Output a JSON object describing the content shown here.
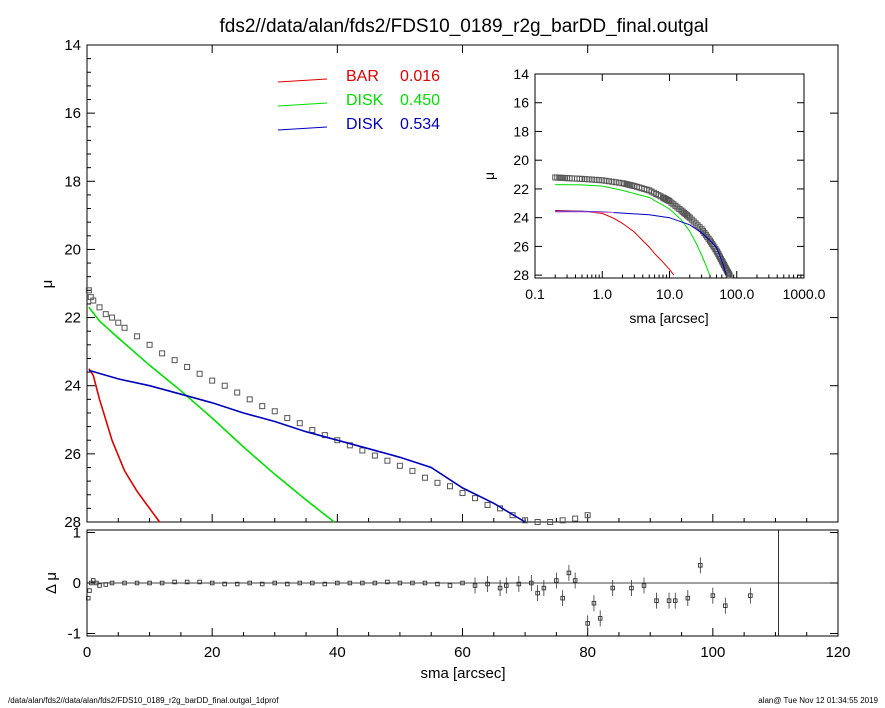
{
  "title": "fds2//data/alan/fds2/FDS10_0189_r2g_barDD_final.outgal",
  "footer": {
    "left": "/data/alan/fds2//data/alan/fds2/FDS10_0189_r2g_barDD_final.outgal_1dprof",
    "right": "alan@  Tue Nov 12 01:34:55 2019"
  },
  "colors": {
    "bar": "#dd0000",
    "disk1": "#00dd00",
    "disk2": "#0000bb",
    "data": "#555555",
    "psf": "#cc66cc"
  },
  "legend": [
    {
      "name": "BAR",
      "value": "0.016",
      "color": "#dd0000"
    },
    {
      "name": "DISK",
      "value": "0.450",
      "color": "#00dd00"
    },
    {
      "name": "DISK",
      "value": "0.534",
      "color": "#0000bb"
    }
  ],
  "chart_data": [
    {
      "type": "line",
      "panel": "main",
      "xlabel": "sma [arcsec]",
      "ylabel": "μ",
      "xlim": [
        0,
        120
      ],
      "ylim": [
        28,
        14
      ],
      "y_inverted": true,
      "xticks": [
        "0",
        "20",
        "40",
        "60",
        "80",
        "100",
        "120"
      ],
      "yticks": [
        "14",
        "16",
        "18",
        "20",
        "22",
        "24",
        "26",
        "28"
      ],
      "data_points": {
        "x": [
          0.3,
          0.6,
          1,
          2,
          3,
          4,
          5,
          6,
          8,
          10,
          12,
          14,
          16,
          18,
          20,
          22,
          24,
          26,
          28,
          30,
          32,
          34,
          36,
          38,
          40,
          42,
          44,
          46,
          48,
          50,
          52,
          54,
          56,
          58,
          60,
          62,
          64,
          66,
          68,
          70,
          72,
          74,
          76,
          78,
          80
        ],
        "y": [
          21.2,
          21.4,
          21.5,
          21.7,
          21.9,
          22.0,
          22.15,
          22.3,
          22.55,
          22.8,
          23.05,
          23.25,
          23.45,
          23.65,
          23.85,
          24.0,
          24.2,
          24.4,
          24.6,
          24.75,
          24.95,
          25.1,
          25.3,
          25.45,
          25.6,
          25.75,
          25.9,
          26.05,
          26.2,
          26.35,
          26.5,
          26.7,
          26.85,
          26.95,
          27.15,
          27.3,
          27.5,
          27.6,
          27.8,
          27.95,
          28.0,
          28.0,
          27.95,
          27.9,
          27.8
        ]
      },
      "series": [
        {
          "name": "BAR 0.016",
          "color": "#dd0000",
          "x": [
            0.3,
            1,
            2,
            3,
            4,
            5,
            6,
            7,
            8,
            9,
            10,
            11,
            11.6
          ],
          "y": [
            23.5,
            23.7,
            24.4,
            25.0,
            25.6,
            26.05,
            26.5,
            26.8,
            27.1,
            27.35,
            27.6,
            27.85,
            28.0
          ]
        },
        {
          "name": "DISK 0.450",
          "color": "#00dd00",
          "x": [
            0.3,
            2,
            5,
            10,
            15,
            20,
            25,
            30,
            35,
            39.5
          ],
          "y": [
            21.7,
            22.1,
            22.6,
            23.4,
            24.15,
            24.95,
            25.8,
            26.6,
            27.35,
            28.0
          ]
        },
        {
          "name": "DISK 0.534",
          "color": "#0000bb",
          "x": [
            0.3,
            5,
            10,
            15,
            20,
            25,
            30,
            35,
            40,
            45,
            50,
            55,
            60,
            65,
            70
          ],
          "y": [
            23.55,
            23.8,
            24.0,
            24.25,
            24.5,
            24.8,
            25.05,
            25.35,
            25.6,
            25.85,
            26.1,
            26.4,
            27.0,
            27.45,
            28.0
          ]
        }
      ]
    },
    {
      "type": "scatter",
      "panel": "residual",
      "xlabel": "sma [arcsec]",
      "ylabel": "Δ μ",
      "xlim": [
        0,
        120
      ],
      "ylim": [
        -1.05,
        1.05
      ],
      "yticks": [
        "-1",
        "0",
        "1"
      ],
      "x": [
        0.2,
        0.4,
        0.7,
        1,
        1.5,
        2,
        3,
        4,
        6,
        8,
        10,
        12,
        14,
        16,
        18,
        20,
        22,
        24,
        26,
        28,
        30,
        32,
        34,
        36,
        38,
        40,
        42,
        44,
        46,
        48,
        50,
        52,
        54,
        56,
        58,
        60,
        62,
        64,
        66,
        67,
        69,
        71,
        72,
        73,
        75,
        76,
        77,
        78,
        80,
        81,
        82,
        84,
        87,
        89,
        91,
        93,
        94,
        96,
        98,
        100,
        102,
        106
      ],
      "y": [
        -0.3,
        -0.15,
        0.0,
        0.05,
        0.0,
        -0.05,
        -0.03,
        0.0,
        0.0,
        0.0,
        0.0,
        0.0,
        0.02,
        0.02,
        0.02,
        0.0,
        -0.02,
        -0.02,
        0.0,
        -0.02,
        0.0,
        -0.02,
        0.0,
        0.0,
        -0.02,
        0.0,
        0.0,
        0.0,
        0.0,
        0.02,
        0.0,
        0.0,
        0.0,
        -0.02,
        -0.05,
        0.0,
        -0.05,
        -0.02,
        -0.1,
        -0.05,
        -0.02,
        0.0,
        -0.2,
        -0.1,
        0.05,
        -0.3,
        0.2,
        0.05,
        -0.8,
        -0.4,
        -0.7,
        -0.1,
        -0.1,
        -0.05,
        -0.35,
        -0.35,
        -0.35,
        -0.3,
        0.35,
        -0.25,
        -0.45,
        -0.25
      ]
    },
    {
      "type": "line",
      "panel": "inset",
      "xlabel": "sma [arcsec]",
      "ylabel": "μ",
      "x_scale": "log",
      "xlim": [
        0.1,
        1000
      ],
      "ylim": [
        28.2,
        14
      ],
      "xticks": [
        "0.1",
        "1.0",
        "10.0",
        "100.0",
        "1000.0"
      ],
      "yticks": [
        "14",
        "16",
        "18",
        "20",
        "22",
        "24",
        "26",
        "28"
      ],
      "data_points": {
        "x": [
          0.2,
          0.3,
          0.5,
          1,
          2,
          3,
          5,
          8,
          10,
          15,
          20,
          30,
          40,
          50,
          60,
          70,
          80
        ],
        "y": [
          21.2,
          21.25,
          21.3,
          21.4,
          21.6,
          21.8,
          22.1,
          22.6,
          22.85,
          23.5,
          24.0,
          24.8,
          25.6,
          26.3,
          27.0,
          27.6,
          28.1
        ]
      },
      "series": [
        {
          "name": "BAR",
          "color": "#dd0000",
          "x": [
            0.2,
            0.5,
            1,
            1.5,
            2,
            3,
            4,
            5,
            6,
            8,
            10,
            11.6
          ],
          "y": [
            23.5,
            23.55,
            23.7,
            24.05,
            24.4,
            25.0,
            25.6,
            26.05,
            26.5,
            27.1,
            27.6,
            28.0
          ]
        },
        {
          "name": "DISK",
          "color": "#00dd00",
          "x": [
            0.2,
            0.5,
            1,
            2,
            5,
            10,
            15,
            20,
            25,
            30,
            35,
            39.5
          ],
          "y": [
            21.7,
            21.72,
            21.8,
            22.1,
            22.6,
            23.4,
            24.15,
            24.95,
            25.8,
            26.6,
            27.35,
            28.0
          ]
        },
        {
          "name": "DISK",
          "color": "#0000bb",
          "x": [
            0.2,
            0.5,
            1,
            2,
            5,
            10,
            20,
            30,
            40,
            50,
            60,
            70
          ],
          "y": [
            23.55,
            23.56,
            23.6,
            23.68,
            23.8,
            24.0,
            24.5,
            25.05,
            25.6,
            26.1,
            27.0,
            28.0
          ]
        },
        {
          "name": "",
          "color": "#cc66cc",
          "x": [
            0.2,
            0.5,
            1,
            1.5
          ],
          "y": [
            23.6,
            23.6,
            23.62,
            23.65
          ]
        }
      ]
    }
  ]
}
